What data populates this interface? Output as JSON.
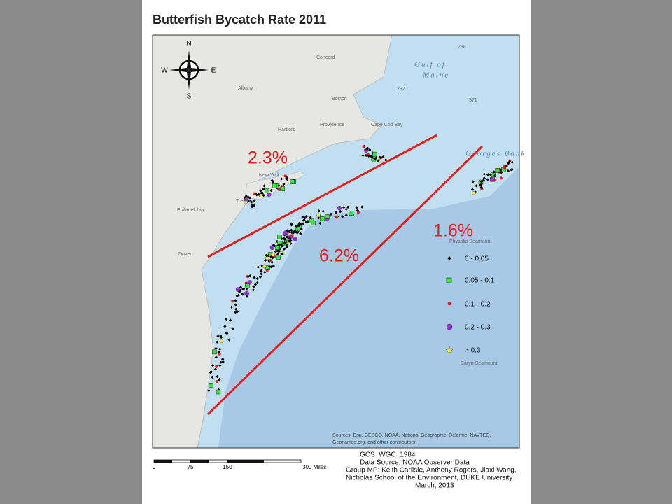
{
  "title": "Butterfish Bycatch Rate 2011",
  "compass": {
    "n": "N",
    "s": "S",
    "e": "E",
    "w": "W"
  },
  "places": [
    "Concord",
    "Boston",
    "Albany",
    "Hartford",
    "Providence",
    "New York",
    "Trenton",
    "Philadelphia",
    "Dover",
    "Cape Cod Bay",
    "Georges Bank",
    "Physalia Seamount",
    "Caryn Seamount",
    "288",
    "292",
    "371"
  ],
  "sea_label": [
    "Gulf of",
    "Maine"
  ],
  "annotations": [
    "2.3%",
    "1.6%",
    "6.2%"
  ],
  "legend": [
    "0 - 0.05",
    "0.05 - 0.1",
    "0.1 - 0.2",
    "0.2 - 0.3",
    "> 0.3"
  ],
  "sources": [
    "Sources: Esri, GEBCO, NOAA, National Geographic, Delorme, NAVTEQ,",
    "Geonames.org, and other contributors"
  ],
  "scale": [
    "0",
    "75",
    "150",
    "300 Miles"
  ],
  "credits": [
    "GCS_WGC_1984",
    "Data Source: NOAA Observer Data",
    "Group MP: Keith Carlisle, Anthony Rogers, Jiaxi Wang,",
    "Nicholas School of the Environment, DUKE University",
    "March, 2013"
  ]
}
